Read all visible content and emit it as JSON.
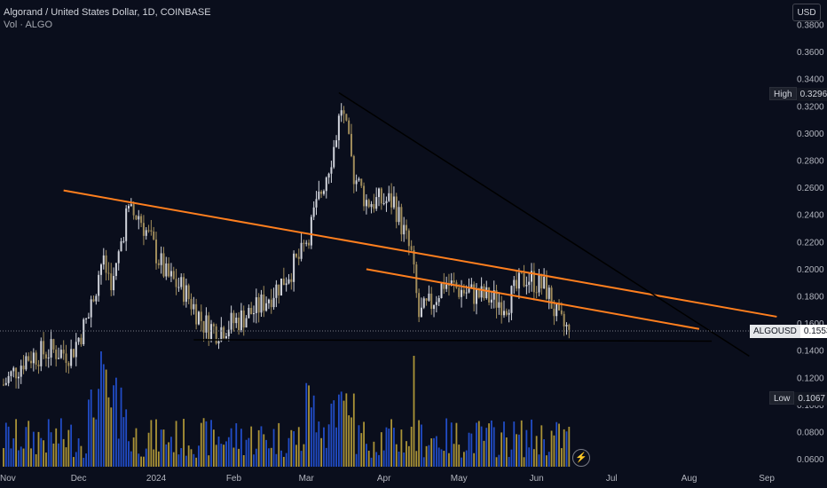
{
  "header": {
    "symbol_title": "Algorand / United States Dollar, 1D, COINBASE",
    "volume_label": "Vol · ALGO"
  },
  "toolbar": {
    "currency_label": "USD",
    "bolt_icon": "lightning-bolt-icon"
  },
  "price_tags": {
    "high_label": "High",
    "high_value": "0.3296",
    "low_label": "Low",
    "low_value": "0.1067",
    "last_label": "ALGOUSD",
    "last_value": "0.1553"
  },
  "colors": {
    "background": "#0a0e1c",
    "candle_up": "#d1d4dc",
    "candle_down": "#a08c5b",
    "volume_up": "#2962ff",
    "volume_down": "#e0c040",
    "trendline_orange": "#ff7f1e",
    "trendline_black": "#000000"
  },
  "chart_data": {
    "type": "candlestick",
    "title": "Algorand / United States Dollar, 1D, COINBASE",
    "currency": "USD",
    "y_axis": {
      "ticks": [
        "0.3800",
        "0.3600",
        "0.3400",
        "0.3200",
        "0.3000",
        "0.2800",
        "0.2600",
        "0.2400",
        "0.2200",
        "0.2000",
        "0.1800",
        "0.1600",
        "0.1400",
        "0.1200",
        "0.1000",
        "0.0800",
        "0.0600"
      ]
    },
    "x_axis": {
      "ticks": [
        "Nov",
        "Dec",
        "2024",
        "Feb",
        "Mar",
        "Apr",
        "May",
        "Jun",
        "Jul",
        "Aug",
        "Sep"
      ]
    },
    "high": 0.3296,
    "low": 0.1067,
    "last": 0.1553,
    "price_path": [
      [
        "2023-11-01",
        0.115
      ],
      [
        "2023-11-10",
        0.135
      ],
      [
        "2023-11-20",
        0.14
      ],
      [
        "2023-11-28",
        0.138
      ],
      [
        "2023-12-05",
        0.165
      ],
      [
        "2023-12-10",
        0.205
      ],
      [
        "2023-12-15",
        0.19
      ],
      [
        "2023-12-20",
        0.24
      ],
      [
        "2023-12-25",
        0.24
      ],
      [
        "2023-12-30",
        0.22
      ],
      [
        "2024-01-05",
        0.195
      ],
      [
        "2024-01-12",
        0.185
      ],
      [
        "2024-01-20",
        0.16
      ],
      [
        "2024-01-25",
        0.155
      ],
      [
        "2024-01-31",
        0.16
      ],
      [
        "2024-02-10",
        0.17
      ],
      [
        "2024-02-20",
        0.19
      ],
      [
        "2024-02-28",
        0.21
      ],
      [
        "2024-03-05",
        0.245
      ],
      [
        "2024-03-12",
        0.29
      ],
      [
        "2024-03-15",
        0.32
      ],
      [
        "2024-03-20",
        0.27
      ],
      [
        "2024-03-25",
        0.25
      ],
      [
        "2024-03-30",
        0.25
      ],
      [
        "2024-04-05",
        0.25
      ],
      [
        "2024-04-12",
        0.21
      ],
      [
        "2024-04-15",
        0.165
      ],
      [
        "2024-04-20",
        0.175
      ],
      [
        "2024-04-25",
        0.19
      ],
      [
        "2024-05-01",
        0.185
      ],
      [
        "2024-05-10",
        0.18
      ],
      [
        "2024-05-20",
        0.175
      ],
      [
        "2024-05-28",
        0.195
      ],
      [
        "2024-06-05",
        0.185
      ],
      [
        "2024-06-10",
        0.16
      ],
      [
        "2024-06-14",
        0.1553
      ]
    ],
    "volume_profile": "higher volume spikes around mid-Dec 2023, early Mar 2024 and mid-Apr 2024",
    "trendlines": [
      {
        "color": "orange",
        "from": [
          "2023-11-25",
          0.258
        ],
        "to": [
          "2024-09-05",
          0.165
        ]
      },
      {
        "color": "orange",
        "from": [
          "2024-03-25",
          0.2
        ],
        "to": [
          "2024-08-05",
          0.156
        ]
      },
      {
        "color": "black",
        "from": [
          "2024-03-14",
          0.33
        ],
        "to": [
          "2024-08-25",
          0.136
        ]
      },
      {
        "color": "black",
        "from": [
          "2024-01-16",
          0.148
        ],
        "to": [
          "2024-08-10",
          0.147
        ]
      }
    ],
    "grid": false
  }
}
